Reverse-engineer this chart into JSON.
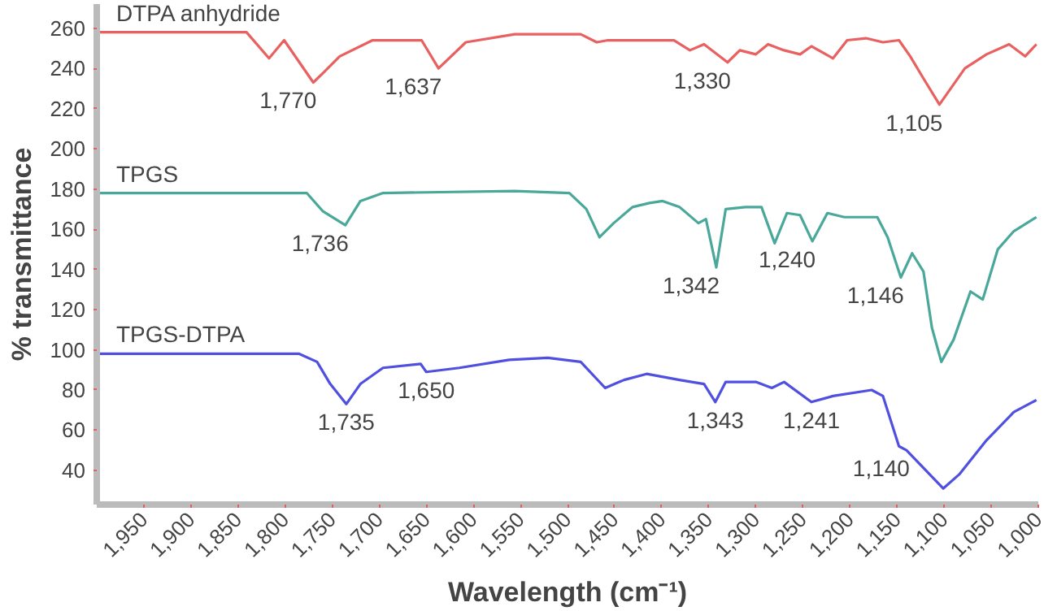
{
  "chart_data": {
    "type": "line",
    "xlabel": "Wavelength (cm⁻¹)",
    "ylabel": "% transmittance",
    "xlim": [
      2000,
      1000
    ],
    "ylim": [
      23,
      272
    ],
    "xticks": [
      {
        "value": 1950,
        "label": "1,950"
      },
      {
        "value": 1900,
        "label": "1,900"
      },
      {
        "value": 1850,
        "label": "1,850"
      },
      {
        "value": 1800,
        "label": "1,800"
      },
      {
        "value": 1750,
        "label": "1,750"
      },
      {
        "value": 1700,
        "label": "1,700"
      },
      {
        "value": 1650,
        "label": "1,650"
      },
      {
        "value": 1600,
        "label": "1,600"
      },
      {
        "value": 1550,
        "label": "1,550"
      },
      {
        "value": 1500,
        "label": "1,500"
      },
      {
        "value": 1450,
        "label": "1,450"
      },
      {
        "value": 1400,
        "label": "1,400"
      },
      {
        "value": 1350,
        "label": "1,350"
      },
      {
        "value": 1300,
        "label": "1,300"
      },
      {
        "value": 1250,
        "label": "1,250"
      },
      {
        "value": 1200,
        "label": "1,200"
      },
      {
        "value": 1150,
        "label": "1,150"
      },
      {
        "value": 1100,
        "label": "1,100"
      },
      {
        "value": 1050,
        "label": "1,050"
      },
      {
        "value": 1000,
        "label": "1,000"
      }
    ],
    "yticks": [
      40,
      60,
      80,
      100,
      120,
      140,
      160,
      180,
      200,
      220,
      240,
      260
    ],
    "grid": false,
    "legend": false,
    "marker": "none",
    "line_style": "solid",
    "series": [
      {
        "name": "DTPA anhydride",
        "color": "#e8605f",
        "x": [
          2000,
          1841,
          1817,
          1801,
          1770,
          1759,
          1742,
          1707,
          1655,
          1637,
          1608,
          1556,
          1486,
          1469,
          1457,
          1387,
          1370,
          1355,
          1330,
          1317,
          1300,
          1287,
          1270,
          1253,
          1241,
          1218,
          1203,
          1183,
          1165,
          1148,
          1136,
          1122,
          1105,
          1093,
          1078,
          1055,
          1031,
          1014,
          1002
        ],
        "values": [
          258,
          258,
          245,
          254,
          233,
          238,
          246,
          254,
          254,
          240,
          253,
          257,
          257,
          253,
          254,
          254,
          249,
          252,
          243,
          249,
          247,
          252,
          249,
          247,
          251,
          245,
          254,
          255,
          253,
          254,
          246,
          235,
          222,
          230,
          240,
          247,
          252,
          246,
          252
        ]
      },
      {
        "name": "TPGS",
        "color": "#4aa89a",
        "x": [
          2000,
          1777,
          1760,
          1736,
          1720,
          1696,
          1556,
          1498,
          1480,
          1466,
          1451,
          1431,
          1413,
          1399,
          1381,
          1361,
          1353,
          1342,
          1332,
          1311,
          1294,
          1280,
          1267,
          1253,
          1240,
          1224,
          1206,
          1171,
          1160,
          1146,
          1134,
          1122,
          1113,
          1103,
          1090,
          1072,
          1059,
          1043,
          1026,
          1002
        ],
        "values": [
          178,
          178,
          169,
          162,
          174,
          178,
          179,
          178,
          170,
          156,
          163,
          171,
          173,
          174,
          171,
          163,
          165,
          141,
          170,
          171,
          171,
          153,
          168,
          167,
          154,
          168,
          166,
          166,
          156,
          136,
          148,
          139,
          111,
          94,
          105,
          129,
          125,
          150,
          159,
          166
        ]
      },
      {
        "name": "TPGS-DTPA",
        "color": "#5050e0",
        "x": [
          2000,
          1785,
          1766,
          1752,
          1735,
          1720,
          1696,
          1656,
          1650,
          1615,
          1562,
          1521,
          1486,
          1460,
          1440,
          1416,
          1381,
          1355,
          1343,
          1332,
          1300,
          1283,
          1270,
          1241,
          1218,
          1177,
          1165,
          1148,
          1140,
          1101,
          1084,
          1055,
          1026,
          1002
        ],
        "values": [
          98,
          98,
          94,
          83,
          73,
          83,
          91,
          93,
          89,
          91,
          95,
          96,
          94,
          81,
          85,
          88,
          85,
          83,
          74,
          84,
          84,
          81,
          84,
          74,
          77,
          80,
          77,
          52,
          50,
          31,
          38,
          55,
          69,
          75
        ]
      }
    ],
    "annotations": [
      {
        "text": "1,770",
        "x": 1770,
        "y": 233
      },
      {
        "text": "1,637",
        "x": 1637,
        "y": 240
      },
      {
        "text": "1,330",
        "x": 1330,
        "y": 243
      },
      {
        "text": "1,105",
        "x": 1105,
        "y": 222
      },
      {
        "text": "1,736",
        "x": 1736,
        "y": 162
      },
      {
        "text": "1,342",
        "x": 1342,
        "y": 141
      },
      {
        "text": "1,240",
        "x": 1240,
        "y": 154
      },
      {
        "text": "1,146",
        "x": 1146,
        "y": 136
      },
      {
        "text": "1,735",
        "x": 1735,
        "y": 73
      },
      {
        "text": "1,650",
        "x": 1650,
        "y": 89
      },
      {
        "text": "1,343",
        "x": 1343,
        "y": 74
      },
      {
        "text": "1,241",
        "x": 1241,
        "y": 74
      },
      {
        "text": "1,140",
        "x": 1140,
        "y": 50
      }
    ]
  }
}
